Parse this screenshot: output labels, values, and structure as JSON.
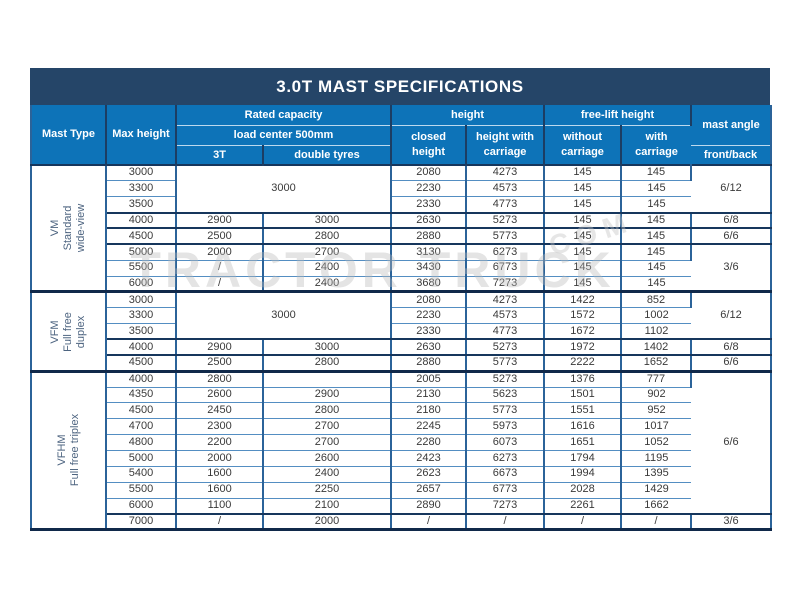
{
  "title": "3.0T MAST SPECIFICATIONS",
  "watermark": {
    "main": "TRACTOR TRUCK",
    "small": "COM"
  },
  "header": {
    "mast_type": "Mast Type",
    "max_height": "Max height",
    "rated_capacity": "Rated capacity",
    "load_center": "load center 500mm",
    "col_3t": "3T",
    "col_double_tyres": "double tyres",
    "height_group": "height",
    "closed_height": "closed height",
    "height_with_carriage": "height with carriage",
    "free_lift_height": "free-lift height",
    "without_carriage": "without carriage",
    "with_carriage": "with carriage",
    "mast_angle": "mast angle",
    "front_back": "front/back"
  },
  "colors": {
    "title_bar": "#254568",
    "header_blue": "#0d73b8",
    "border_dark": "#16365c",
    "border_steel": "#2b6399"
  },
  "sections": [
    {
      "label_lines": [
        "VM",
        "Standard",
        "wide-view"
      ],
      "merged_capacity": {
        "rows": 3,
        "value": "3000"
      },
      "rows": [
        {
          "max": "3000",
          "t3": null,
          "dt": null,
          "closed": "2080",
          "hwc": "4273",
          "woc": "145",
          "wc": "145"
        },
        {
          "max": "3300",
          "t3": null,
          "dt": null,
          "closed": "2230",
          "hwc": "4573",
          "woc": "145",
          "wc": "145"
        },
        {
          "max": "3500",
          "t3": null,
          "dt": null,
          "closed": "2330",
          "hwc": "4773",
          "woc": "145",
          "wc": "145"
        },
        {
          "max": "4000",
          "t3": "2900",
          "dt": "3000",
          "closed": "2630",
          "hwc": "5273",
          "woc": "145",
          "wc": "145"
        },
        {
          "max": "4500",
          "t3": "2500",
          "dt": "2800",
          "closed": "2880",
          "hwc": "5773",
          "woc": "145",
          "wc": "145"
        },
        {
          "max": "5000",
          "t3": "2000",
          "dt": "2700",
          "closed": "3130",
          "hwc": "6273",
          "woc": "145",
          "wc": "145"
        },
        {
          "max": "5500",
          "t3": "/",
          "dt": "2400",
          "closed": "3430",
          "hwc": "6773",
          "woc": "145",
          "wc": "145"
        },
        {
          "max": "6000",
          "t3": "/",
          "dt": "2400",
          "closed": "3680",
          "hwc": "7273",
          "woc": "145",
          "wc": "145"
        }
      ],
      "angle_groups": [
        {
          "span": 3,
          "value": "6/12"
        },
        {
          "span": 1,
          "value": "6/8"
        },
        {
          "span": 1,
          "value": "6/6"
        },
        {
          "span": 3,
          "value": "3/6"
        }
      ]
    },
    {
      "label_lines": [
        "VFM",
        "Full free",
        "duplex"
      ],
      "merged_capacity": {
        "rows": 3,
        "value": "3000"
      },
      "rows": [
        {
          "max": "3000",
          "t3": null,
          "dt": null,
          "closed": "2080",
          "hwc": "4273",
          "woc": "1422",
          "wc": "852"
        },
        {
          "max": "3300",
          "t3": null,
          "dt": null,
          "closed": "2230",
          "hwc": "4573",
          "woc": "1572",
          "wc": "1002"
        },
        {
          "max": "3500",
          "t3": null,
          "dt": null,
          "closed": "2330",
          "hwc": "4773",
          "woc": "1672",
          "wc": "1102"
        },
        {
          "max": "4000",
          "t3": "2900",
          "dt": "3000",
          "closed": "2630",
          "hwc": "5273",
          "woc": "1972",
          "wc": "1402"
        },
        {
          "max": "4500",
          "t3": "2500",
          "dt": "2800",
          "closed": "2880",
          "hwc": "5773",
          "woc": "2222",
          "wc": "1652"
        }
      ],
      "angle_groups": [
        {
          "span": 3,
          "value": "6/12"
        },
        {
          "span": 1,
          "value": "6/8"
        },
        {
          "span": 1,
          "value": "6/6"
        }
      ]
    },
    {
      "label_lines": [
        "VFHM",
        "Full free triplex"
      ],
      "merged_capacity": null,
      "rows": [
        {
          "max": "4000",
          "t3": "2800",
          "dt": "",
          "closed": "2005",
          "hwc": "5273",
          "woc": "1376",
          "wc": "777"
        },
        {
          "max": "4350",
          "t3": "2600",
          "dt": "2900",
          "closed": "2130",
          "hwc": "5623",
          "woc": "1501",
          "wc": "902"
        },
        {
          "max": "4500",
          "t3": "2450",
          "dt": "2800",
          "closed": "2180",
          "hwc": "5773",
          "woc": "1551",
          "wc": "952"
        },
        {
          "max": "4700",
          "t3": "2300",
          "dt": "2700",
          "closed": "2245",
          "hwc": "5973",
          "woc": "1616",
          "wc": "1017"
        },
        {
          "max": "4800",
          "t3": "2200",
          "dt": "2700",
          "closed": "2280",
          "hwc": "6073",
          "woc": "1651",
          "wc": "1052"
        },
        {
          "max": "5000",
          "t3": "2000",
          "dt": "2600",
          "closed": "2423",
          "hwc": "6273",
          "woc": "1794",
          "wc": "1195"
        },
        {
          "max": "5400",
          "t3": "1600",
          "dt": "2400",
          "closed": "2623",
          "hwc": "6673",
          "woc": "1994",
          "wc": "1395"
        },
        {
          "max": "5500",
          "t3": "1600",
          "dt": "2250",
          "closed": "2657",
          "hwc": "6773",
          "woc": "2028",
          "wc": "1429"
        },
        {
          "max": "6000",
          "t3": "1100",
          "dt": "2100",
          "closed": "2890",
          "hwc": "7273",
          "woc": "2261",
          "wc": "1662"
        },
        {
          "max": "7000",
          "t3": "/",
          "dt": "2000",
          "closed": "/",
          "hwc": "/",
          "woc": "/",
          "wc": "/"
        }
      ],
      "angle_groups": [
        {
          "span": 9,
          "value": "6/6"
        },
        {
          "span": 1,
          "value": "3/6"
        }
      ]
    }
  ]
}
